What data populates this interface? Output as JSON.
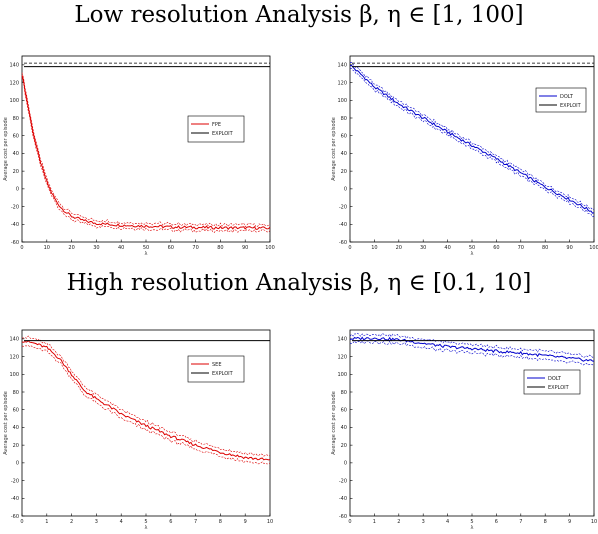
{
  "titles": {
    "low": "Low resolution Analysis β, η ∈ [1, 100]",
    "high": "High resolution Analysis β, η ∈ [0.1, 10]"
  },
  "chart_data": [
    {
      "type": "line",
      "title": "",
      "xlabel": "λ",
      "ylabel": "Average cost per episode",
      "xlim": [
        0,
        100
      ],
      "ylim": [
        -60,
        150
      ],
      "xticks": [
        0,
        10,
        20,
        30,
        40,
        50,
        60,
        70,
        80,
        90,
        100
      ],
      "yticks": [
        -60,
        -40,
        -20,
        0,
        20,
        40,
        60,
        80,
        100,
        120,
        140
      ],
      "legend": {
        "placement": "right",
        "entries": [
          "FPE",
          "EXPLOIT"
        ]
      },
      "series": [
        {
          "name": "FPE",
          "color": "#dd0000",
          "band": 3,
          "x": [
            0,
            2,
            4,
            6,
            8,
            10,
            12,
            14,
            16,
            18,
            20,
            25,
            30,
            40,
            50,
            60,
            70,
            80,
            90,
            100
          ],
          "y": [
            130,
            100,
            70,
            45,
            25,
            8,
            -5,
            -15,
            -22,
            -27,
            -31,
            -36,
            -39,
            -41,
            -42,
            -43,
            -43.5,
            -44,
            -44,
            -44.5
          ]
        },
        {
          "name": "EXPLOIT",
          "color": "#000000",
          "band": 0,
          "x": [
            0,
            100
          ],
          "y": [
            138,
            138
          ]
        }
      ]
    },
    {
      "type": "line",
      "title": "",
      "xlabel": "λ",
      "ylabel": "Average cost per episode",
      "xlim": [
        0,
        100
      ],
      "ylim": [
        -60,
        150
      ],
      "xticks": [
        0,
        10,
        20,
        30,
        40,
        50,
        60,
        70,
        80,
        90,
        100
      ],
      "yticks": [
        -60,
        -40,
        -20,
        0,
        20,
        40,
        60,
        80,
        100,
        120,
        140
      ],
      "legend": {
        "placement": "top-right",
        "entries": [
          "DOLT",
          "EXPLOIT"
        ]
      },
      "series": [
        {
          "name": "DOLT",
          "color": "#0000cc",
          "band": 3,
          "x": [
            0,
            5,
            10,
            20,
            30,
            40,
            50,
            60,
            70,
            80,
            90,
            100
          ],
          "y": [
            140,
            128,
            115,
            96,
            80,
            64,
            49,
            34,
            18,
            2,
            -12,
            -27
          ]
        },
        {
          "name": "EXPLOIT",
          "color": "#000000",
          "band": 0,
          "x": [
            0,
            100
          ],
          "y": [
            138,
            138
          ]
        }
      ]
    },
    {
      "type": "line",
      "title": "",
      "xlabel": "λ",
      "ylabel": "Average cost per episode",
      "xlim": [
        0,
        10
      ],
      "ylim": [
        -60,
        150
      ],
      "xticks": [
        0,
        1,
        2,
        3,
        4,
        5,
        6,
        7,
        8,
        9,
        10
      ],
      "yticks": [
        -60,
        -40,
        -20,
        0,
        20,
        40,
        60,
        80,
        100,
        120,
        140
      ],
      "legend": {
        "placement": "right",
        "entries": [
          "SEE",
          "EXPLOIT"
        ]
      },
      "series": [
        {
          "name": "SEE",
          "color": "#dd0000",
          "band": 4,
          "x": [
            0,
            0.5,
            1,
            1.5,
            2,
            2.5,
            3,
            3.5,
            4,
            5,
            6,
            7,
            8,
            9,
            10
          ],
          "y": [
            138,
            135,
            130,
            118,
            100,
            82,
            72,
            64,
            55,
            42,
            30,
            20,
            12,
            6,
            3
          ]
        },
        {
          "name": "EXPLOIT",
          "color": "#000000",
          "band": 0,
          "x": [
            0,
            10
          ],
          "y": [
            138,
            138
          ]
        }
      ]
    },
    {
      "type": "line",
      "title": "",
      "xlabel": "λ",
      "ylabel": "Average cost per episode",
      "xlim": [
        0,
        10
      ],
      "ylim": [
        -60,
        150
      ],
      "xticks": [
        0,
        1,
        2,
        3,
        4,
        5,
        6,
        7,
        8,
        9,
        10
      ],
      "yticks": [
        -60,
        -40,
        -20,
        0,
        20,
        40,
        60,
        80,
        100,
        120,
        140
      ],
      "legend": {
        "placement": "right",
        "entries": [
          "DOLT",
          "EXPLOIT"
        ]
      },
      "series": [
        {
          "name": "DOLT",
          "color": "#0000cc",
          "band": 4,
          "x": [
            0,
            1,
            2,
            3,
            4,
            5,
            6,
            7,
            8,
            9,
            10
          ],
          "y": [
            140,
            141,
            139,
            135,
            131,
            129,
            126,
            124,
            121,
            118,
            115
          ]
        },
        {
          "name": "EXPLOIT",
          "color": "#000000",
          "band": 0,
          "x": [
            0,
            10
          ],
          "y": [
            138,
            138
          ]
        }
      ]
    }
  ]
}
